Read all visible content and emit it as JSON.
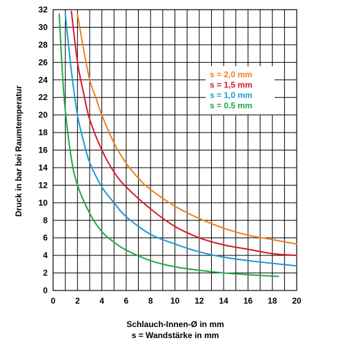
{
  "chart_data": {
    "type": "line",
    "title": "",
    "xlabel": "Schlauch-Innen-Ø in mm",
    "xlabel_line2": "s = Wandstärke in mm",
    "ylabel": "Druck in bar bei Raumtemperatur",
    "xlim": [
      0,
      20
    ],
    "ylim": [
      0,
      32
    ],
    "x_ticks": [
      0,
      2,
      4,
      6,
      8,
      10,
      12,
      14,
      16,
      18,
      20
    ],
    "y_ticks": [
      0,
      2,
      4,
      6,
      8,
      10,
      12,
      14,
      16,
      18,
      20,
      22,
      24,
      26,
      28,
      30,
      32
    ],
    "x_grid_step": 1,
    "y_grid_step": 2,
    "grid": true,
    "legend_placement": "upper-right",
    "series": [
      {
        "name": "s = 2,0 mm",
        "color": "#f07f1f",
        "x": [
          2.0,
          2.5,
          3.0,
          3.5,
          4.0,
          5.0,
          6.0,
          7.0,
          8.0,
          10.0,
          12.0,
          14.0,
          16.0,
          18.0,
          20.0
        ],
        "y": [
          31.5,
          27.5,
          24.0,
          22.0,
          20.0,
          16.8,
          14.5,
          12.8,
          11.5,
          9.6,
          8.2,
          7.1,
          6.3,
          5.8,
          5.3
        ]
      },
      {
        "name": "s = 1,5 mm",
        "color": "#d7182a",
        "x": [
          1.5,
          2.0,
          2.5,
          3.0,
          4.0,
          5.0,
          6.0,
          8.0,
          10.0,
          12.0,
          14.0,
          16.0,
          18.0,
          20.0
        ],
        "y": [
          31.8,
          26.0,
          22.5,
          19.5,
          16.0,
          13.5,
          11.8,
          9.3,
          7.3,
          6.0,
          5.2,
          4.7,
          4.2,
          4.0
        ]
      },
      {
        "name": "s = 1,0 mm",
        "color": "#1a9bd7",
        "x": [
          1.0,
          1.5,
          2.0,
          2.5,
          3.0,
          4.0,
          5.0,
          6.0,
          8.0,
          10.0,
          12.0,
          14.0,
          16.0,
          18.0,
          20.0
        ],
        "y": [
          31.5,
          25.0,
          20.0,
          17.0,
          14.6,
          11.8,
          10.0,
          8.4,
          6.4,
          5.3,
          4.4,
          3.8,
          3.4,
          3.1,
          2.8
        ]
      },
      {
        "name": "s = 0.5 mm",
        "color": "#1fa64a",
        "x": [
          0.5,
          0.75,
          1.0,
          1.5,
          2.0,
          3.0,
          4.0,
          5.0,
          6.0,
          8.0,
          10.0,
          12.0,
          14.0,
          16.0,
          18.5
        ],
        "y": [
          31.5,
          25.0,
          20.5,
          15.0,
          12.0,
          8.8,
          6.7,
          5.5,
          4.6,
          3.4,
          2.7,
          2.3,
          2.0,
          1.8,
          1.6
        ]
      }
    ]
  }
}
